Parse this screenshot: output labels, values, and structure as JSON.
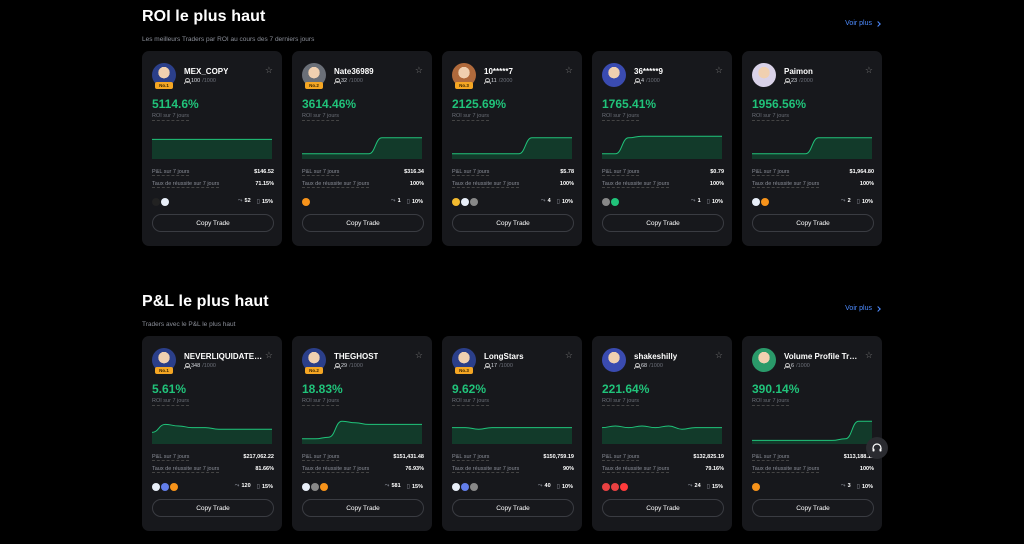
{
  "sections": [
    {
      "title": "ROI le plus haut",
      "subtitle": "Les meilleurs Traders par ROI au cours des 7 derniers jours",
      "see_more": "Voir plus",
      "cards": [
        {
          "name": "MEX_COPY",
          "followers": "100",
          "max": "/1000",
          "badge": "No.1",
          "roi": "5114.6%",
          "roi_label": "ROI sur 7 jours",
          "pnl_label": "P&L sur 7 jours",
          "pnl": "$146.52",
          "win_label": "Taux de réussite sur 7 jours",
          "win": "71.15%",
          "coins": [
            "#222",
            "#e8eef8"
          ],
          "copies": "52",
          "share": "15%",
          "copy_label": "Copy Trade",
          "curve": [
            0.55,
            0.55,
            0.55,
            0.55,
            0.55,
            0.55,
            0.55,
            0.55,
            0.55,
            0.55
          ],
          "avatar": "#2b3f8a"
        },
        {
          "name": "Nate36989",
          "followers": "32",
          "max": "/1000",
          "badge": "No.2",
          "roi": "3614.46%",
          "roi_label": "ROI sur 7 jours",
          "pnl_label": "P&L sur 7 jours",
          "pnl": "$316.34",
          "win_label": "Taux de réussite sur 7 jours",
          "win": "100%",
          "coins": [
            "#f7931a"
          ],
          "copies": "1",
          "share": "10%",
          "copy_label": "Copy Trade",
          "curve": [
            0.1,
            0.1,
            0.1,
            0.1,
            0.1,
            0.1,
            0.6,
            0.6,
            0.6,
            0.6
          ],
          "avatar": "#6a6f78"
        },
        {
          "name": "10*****7",
          "followers": "11",
          "max": "/2000",
          "badge": "No.3",
          "roi": "2125.69%",
          "roi_label": "ROI sur 7 jours",
          "pnl_label": "P&L sur 7 jours",
          "pnl": "$5.78",
          "win_label": "Taux de réussite sur 7 jours",
          "win": "100%",
          "coins": [
            "#f3ba2f",
            "#e8eef8",
            "#888"
          ],
          "copies": "4",
          "share": "10%",
          "copy_label": "Copy Trade",
          "curve": [
            0.1,
            0.1,
            0.1,
            0.1,
            0.1,
            0.1,
            0.6,
            0.6,
            0.6,
            0.6
          ],
          "avatar": "#b06a3c"
        },
        {
          "name": "36*****9",
          "followers": "4",
          "max": "/1000",
          "badge": "",
          "roi": "1765.41%",
          "roi_label": "ROI sur 7 jours",
          "pnl_label": "P&L sur 7 jours",
          "pnl": "$0.79",
          "win_label": "Taux de réussite sur 7 jours",
          "win": "100%",
          "coins": [
            "#888",
            "#20c37a"
          ],
          "copies": "1",
          "share": "10%",
          "copy_label": "Copy Trade",
          "curve": [
            0.1,
            0.1,
            0.6,
            0.65,
            0.65,
            0.65,
            0.65,
            0.65,
            0.65,
            0.65
          ],
          "avatar": "#3a4bb0"
        },
        {
          "name": "Paimon",
          "followers": "23",
          "max": "/2000",
          "badge": "",
          "roi": "1956.56%",
          "roi_label": "ROI sur 7 jours",
          "pnl_label": "P&L sur 7 jours",
          "pnl": "$1,964.80",
          "win_label": "Taux de réussite sur 7 jours",
          "win": "100%",
          "coins": [
            "#e8eef8",
            "#f7931a"
          ],
          "copies": "2",
          "share": "10%",
          "copy_label": "Copy Trade",
          "curve": [
            0.1,
            0.1,
            0.1,
            0.1,
            0.1,
            0.6,
            0.6,
            0.6,
            0.6,
            0.6
          ],
          "avatar": "#d9d2e8"
        }
      ]
    },
    {
      "title": "P&L le plus haut",
      "subtitle": "Traders avec le P&L le plus haut",
      "see_more": "Voir plus",
      "cards": [
        {
          "name": "NEVERLIQUIDATE…",
          "followers": "348",
          "max": "/1000",
          "badge": "No.1",
          "roi": "5.61%",
          "roi_label": "ROI sur 7 jours",
          "pnl_label": "P&L sur 7 jours",
          "pnl": "$217,062.22",
          "win_label": "Taux de réussite sur 7 jours",
          "win": "81.66%",
          "coins": [
            "#e8eef8",
            "#627eea",
            "#f7931a"
          ],
          "copies": "120",
          "share": "15%",
          "copy_label": "Copy Trade",
          "curve": [
            0.3,
            0.55,
            0.5,
            0.45,
            0.45,
            0.4,
            0.4,
            0.4,
            0.4,
            0.4
          ],
          "avatar": "#2b3f8a"
        },
        {
          "name": "THEGHOST",
          "followers": "29",
          "max": "/1000",
          "badge": "No.2",
          "roi": "18.83%",
          "roi_label": "ROI sur 7 jours",
          "pnl_label": "P&L sur 7 jours",
          "pnl": "$151,431.48",
          "win_label": "Taux de réussite sur 7 jours",
          "win": "76.93%",
          "coins": [
            "#e8eef8",
            "#888",
            "#f7931a"
          ],
          "copies": "581",
          "share": "15%",
          "copy_label": "Copy Trade",
          "curve": [
            0.1,
            0.1,
            0.15,
            0.65,
            0.6,
            0.55,
            0.55,
            0.55,
            0.55,
            0.55
          ],
          "avatar": "#2b3f8a"
        },
        {
          "name": "LongStars",
          "followers": "17",
          "max": "/1000",
          "badge": "No.3",
          "roi": "9.62%",
          "roi_label": "ROI sur 7 jours",
          "pnl_label": "P&L sur 7 jours",
          "pnl": "$150,759.19",
          "win_label": "Taux de réussite sur 7 jours",
          "win": "90%",
          "coins": [
            "#e8eef8",
            "#627eea",
            "#888"
          ],
          "copies": "40",
          "share": "10%",
          "copy_label": "Copy Trade",
          "curve": [
            0.45,
            0.45,
            0.4,
            0.45,
            0.45,
            0.45,
            0.45,
            0.45,
            0.45,
            0.45
          ],
          "avatar": "#2b3f8a"
        },
        {
          "name": "shakeshilly",
          "followers": "68",
          "max": "/1000",
          "badge": "",
          "roi": "221.64%",
          "roi_label": "ROI sur 7 jours",
          "pnl_label": "P&L sur 7 jours",
          "pnl": "$132,825.19",
          "win_label": "Taux de réussite sur 7 jours",
          "win": "79.16%",
          "coins": [
            "#e84142",
            "#e84142",
            "#ff3b3b"
          ],
          "copies": "24",
          "share": "15%",
          "copy_label": "Copy Trade",
          "curve": [
            0.45,
            0.5,
            0.45,
            0.5,
            0.45,
            0.5,
            0.4,
            0.45,
            0.45,
            0.45
          ],
          "avatar": "#3a4bb0"
        },
        {
          "name": "Volume Profile Tr…",
          "followers": "6",
          "max": "/1000",
          "badge": "",
          "roi": "390.14%",
          "roi_label": "ROI sur 7 jours",
          "pnl_label": "P&L sur 7 jours",
          "pnl": "$113,188.15",
          "win_label": "Taux de réussite sur 7 jours",
          "win": "100%",
          "coins": [
            "#f7931a"
          ],
          "copies": "3",
          "share": "10%",
          "copy_label": "Copy Trade",
          "curve": [
            0.05,
            0.05,
            0.05,
            0.05,
            0.05,
            0.05,
            0.05,
            0.1,
            0.65,
            0.65
          ],
          "avatar": "#2a9a6a"
        }
      ]
    }
  ],
  "support_icon": "headset-icon"
}
